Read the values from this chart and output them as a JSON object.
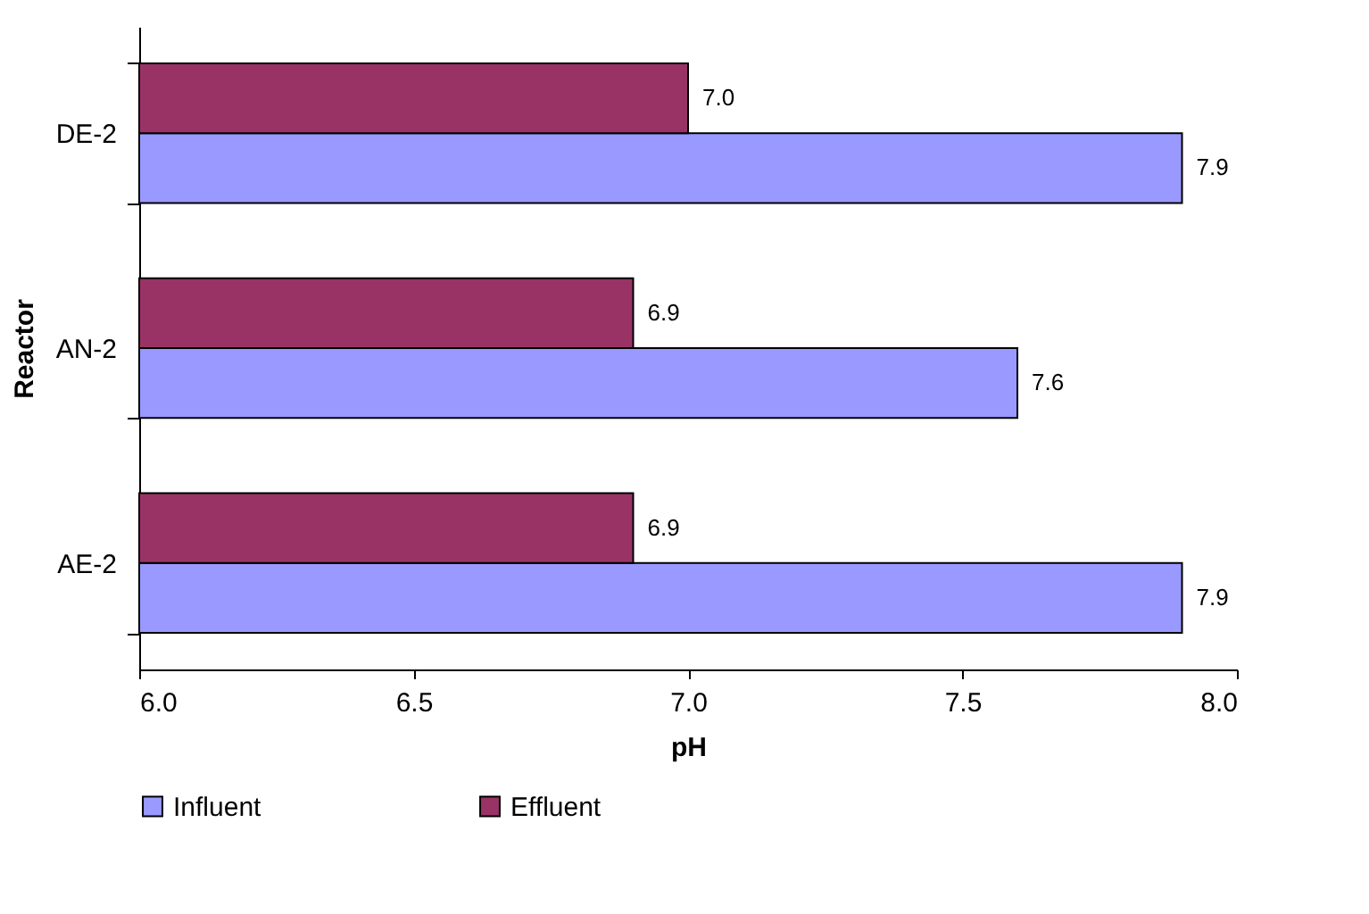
{
  "chart_data": {
    "type": "bar",
    "orientation": "horizontal",
    "xlabel": "pH",
    "ylabel": "Reactor",
    "categories": [
      "DE-2",
      "AN-2",
      "AE-2"
    ],
    "series": [
      {
        "name": "Influent",
        "color": "#9999ff",
        "values": [
          7.9,
          7.6,
          7.9
        ],
        "value_labels": [
          "7.9",
          "7.6",
          "7.9"
        ]
      },
      {
        "name": "Effluent",
        "color": "#993366",
        "values": [
          7.0,
          6.9,
          6.9
        ],
        "value_labels": [
          "7.0",
          "6.9",
          "6.9"
        ]
      }
    ],
    "xlim": [
      6,
      8
    ],
    "xticks": [
      {
        "value": 6,
        "label": "6.0"
      },
      {
        "value": 6.5,
        "label": "6.5"
      },
      {
        "value": 7,
        "label": "7.0"
      },
      {
        "value": 7.5,
        "label": "7.5"
      },
      {
        "value": 8,
        "label": "8.0"
      }
    ],
    "grid": false,
    "legend": "bottom"
  }
}
